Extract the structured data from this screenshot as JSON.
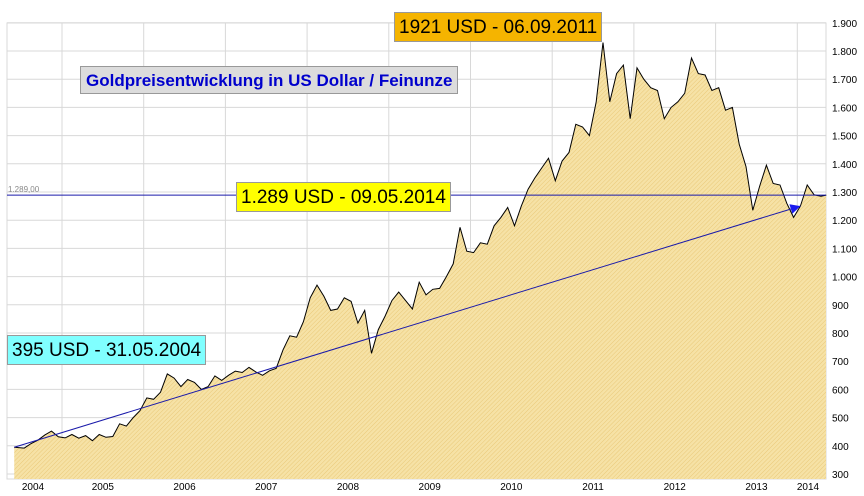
{
  "chart_data": {
    "type": "area",
    "title": "Goldpreisentwicklung in US Dollar / Feinunze",
    "xlabel": "",
    "ylabel": "",
    "ylim": [
      300,
      1900
    ],
    "y_ticks": [
      "300",
      "400",
      "500",
      "600",
      "700",
      "800",
      "900",
      "1.000",
      "1.100",
      "1.200",
      "1.300",
      "1.400",
      "1.500",
      "1.600",
      "1.700",
      "1.800",
      "1.900"
    ],
    "x_ticks": [
      "2004",
      "2005",
      "2006",
      "2007",
      "2008",
      "2009",
      "2010",
      "2011",
      "2012",
      "2013",
      "2014"
    ],
    "grid": true,
    "colors": {
      "fill": "#f3dc9a",
      "line": "#000000",
      "trend": "#1a1aaa",
      "grid": "#d8d8d8"
    },
    "series": [
      {
        "x": [
          "2004-05-31",
          "2004-07",
          "2004-08",
          "2004-09",
          "2004-10",
          "2004-11",
          "2004-12",
          "2005-01",
          "2005-02",
          "2005-03",
          "2005-04",
          "2005-05",
          "2005-06",
          "2005-07",
          "2005-08",
          "2005-09",
          "2005-10",
          "2005-11",
          "2005-12",
          "2006-01",
          "2006-02",
          "2006-03",
          "2006-04",
          "2006-05",
          "2006-06",
          "2006-07",
          "2006-08",
          "2006-09",
          "2006-10",
          "2006-11",
          "2006-12",
          "2007-01",
          "2007-02",
          "2007-03",
          "2007-04",
          "2007-05",
          "2007-06",
          "2007-07",
          "2007-08",
          "2007-09",
          "2007-10",
          "2007-11",
          "2007-12",
          "2008-01",
          "2008-02",
          "2008-03",
          "2008-04",
          "2008-05",
          "2008-06",
          "2008-07",
          "2008-08",
          "2008-09",
          "2008-10",
          "2008-11",
          "2008-12",
          "2009-01",
          "2009-02",
          "2009-03",
          "2009-04",
          "2009-05",
          "2009-06",
          "2009-07",
          "2009-08",
          "2009-09",
          "2009-10",
          "2009-11",
          "2009-12",
          "2010-01",
          "2010-02",
          "2010-03",
          "2010-04",
          "2010-05",
          "2010-06",
          "2010-07",
          "2010-08",
          "2010-09",
          "2010-10",
          "2010-11",
          "2010-12",
          "2011-01",
          "2011-02",
          "2011-03",
          "2011-04",
          "2011-05",
          "2011-06",
          "2011-07",
          "2011-08",
          "2011-09",
          "2011-10",
          "2011-11",
          "2011-12",
          "2012-01",
          "2012-02",
          "2012-03",
          "2012-04",
          "2012-05",
          "2012-06",
          "2012-07",
          "2012-08",
          "2012-09",
          "2012-10",
          "2012-11",
          "2012-12",
          "2013-01",
          "2013-02",
          "2013-03",
          "2013-04",
          "2013-05",
          "2013-06",
          "2013-07",
          "2013-08",
          "2013-09",
          "2013-10",
          "2013-11",
          "2013-12",
          "2014-01",
          "2014-02",
          "2014-03",
          "2014-04",
          "2014-05-09"
        ],
        "values": [
          395,
          392,
          408,
          420,
          438,
          452,
          432,
          428,
          440,
          427,
          436,
          418,
          440,
          430,
          433,
          478,
          470,
          500,
          525,
          570,
          565,
          590,
          655,
          640,
          610,
          635,
          625,
          600,
          610,
          648,
          632,
          650,
          665,
          660,
          678,
          662,
          650,
          666,
          675,
          740,
          790,
          785,
          840,
          925,
          970,
          930,
          880,
          885,
          925,
          912,
          835,
          880,
          728,
          812,
          860,
          915,
          945,
          915,
          885,
          980,
          935,
          955,
          958,
          1000,
          1045,
          1175,
          1090,
          1085,
          1120,
          1115,
          1180,
          1210,
          1245,
          1180,
          1250,
          1310,
          1350,
          1385,
          1420,
          1340,
          1410,
          1440,
          1540,
          1530,
          1500,
          1620,
          1830,
          1620,
          1720,
          1750,
          1560,
          1740,
          1700,
          1670,
          1660,
          1560,
          1600,
          1620,
          1650,
          1775,
          1720,
          1715,
          1660,
          1670,
          1590,
          1600,
          1470,
          1390,
          1235,
          1320,
          1395,
          1330,
          1325,
          1260,
          1210,
          1250,
          1325,
          1290,
          1285,
          1289
        ]
      }
    ],
    "hline": {
      "value": 1289,
      "label": "1.289,00"
    },
    "trendline": {
      "from": {
        "x": "2004-05-31",
        "y": 395
      },
      "to": {
        "x": "2014-01",
        "y": 1250
      }
    },
    "annotations": {
      "peak": "1921 USD - 06.09.2011",
      "current": "1.289 USD - 09.05.2014",
      "start": "395 USD - 31.05.2004"
    }
  }
}
